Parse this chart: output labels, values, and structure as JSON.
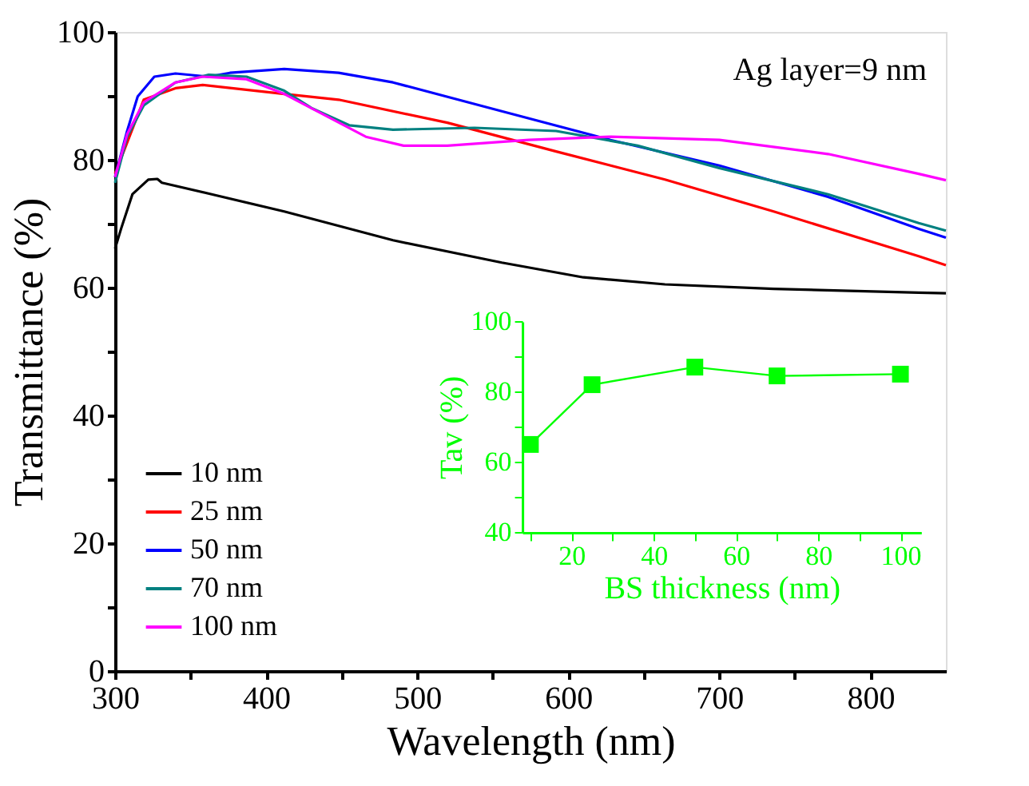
{
  "chart_data": [
    {
      "type": "line",
      "xlabel": "Wavelength (nm)",
      "ylabel": "Transmittance (%)",
      "xlim": [
        300,
        850
      ],
      "ylim": [
        0,
        100
      ],
      "xticks": [
        300,
        {
          "value": 350,
          "label": null
        },
        400,
        {
          "value": 450,
          "label": null
        },
        500,
        {
          "value": 550,
          "label": null
        },
        600,
        {
          "value": 650,
          "label": null
        },
        700,
        {
          "value": 750,
          "label": null
        },
        800
      ],
      "yticks": [
        0,
        {
          "value": 10,
          "label": null
        },
        20,
        {
          "value": 30,
          "label": null
        },
        40,
        {
          "value": 50,
          "label": null
        },
        60,
        {
          "value": 70,
          "label": null
        },
        80,
        {
          "value": 90,
          "label": null
        },
        100
      ],
      "legend": "bottom left",
      "grid": false,
      "line_style": "solid",
      "marker": "none",
      "annotations": [
        "Ag layer=9 nm"
      ],
      "series": [
        {
          "name": "10 nm",
          "color": "#000000",
          "x": [
            300,
            304,
            311.5,
            322,
            328,
            331,
            364,
            412,
            484,
            556,
            610,
            664,
            736,
            832,
            850
          ],
          "values": [
            66.1,
            69.2,
            74.6,
            76.9,
            77.0,
            76.4,
            74.6,
            71.9,
            67.4,
            63.9,
            61.6,
            60.5,
            59.8,
            59.2,
            59.1
          ]
        },
        {
          "name": "25 nm",
          "color": "#ff0000",
          "x": [
            300,
            319,
            340,
            358,
            412,
            448,
            520,
            592,
            664,
            736,
            832,
            850
          ],
          "values": [
            77.8,
            89.4,
            91.2,
            91.7,
            90.3,
            89.4,
            85.8,
            81.3,
            76.9,
            71.9,
            64.9,
            63.5
          ]
        },
        {
          "name": "50 nm",
          "color": "#0000ff",
          "x": [
            300,
            308,
            315,
            326,
            340,
            362,
            376,
            412,
            448,
            484,
            556,
            628,
            700,
            772,
            832,
            850
          ],
          "values": [
            77.3,
            84.5,
            89.9,
            93.0,
            93.5,
            93.0,
            93.6,
            94.2,
            93.6,
            92.1,
            87.6,
            83.1,
            79.1,
            74.2,
            69.2,
            67.8
          ]
        },
        {
          "name": "70 nm",
          "color": "#008080",
          "x": [
            300,
            308,
            319,
            340,
            362,
            387,
            412,
            430,
            455,
            484,
            538,
            592,
            646,
            700,
            772,
            832,
            850
          ],
          "values": [
            76.4,
            83.6,
            88.5,
            92.1,
            93.3,
            93.0,
            90.8,
            88.1,
            85.4,
            84.7,
            85.0,
            84.5,
            82.2,
            78.7,
            74.6,
            70.1,
            68.9
          ]
        },
        {
          "name": "100 nm",
          "color": "#ff00ff",
          "x": [
            300,
            308,
            319,
            340,
            358,
            387,
            412,
            441,
            466,
            491,
            520,
            574,
            628,
            700,
            772,
            832,
            850
          ],
          "values": [
            77.3,
            84.0,
            89.0,
            92.1,
            93.0,
            92.6,
            90.3,
            86.7,
            83.6,
            82.2,
            82.2,
            83.1,
            83.6,
            83.1,
            80.9,
            77.8,
            76.8
          ]
        }
      ]
    },
    {
      "type": "line",
      "xlabel": "BS thickness (nm)",
      "ylabel": "Tav (%)",
      "xlim": [
        8,
        105
      ],
      "ylim": [
        40,
        100
      ],
      "xticks": [
        {
          "value": 10,
          "label": null
        },
        20,
        {
          "value": 30,
          "label": null
        },
        40,
        {
          "value": 50,
          "label": null
        },
        60,
        {
          "value": 70,
          "label": null
        },
        80,
        {
          "value": 90,
          "label": null
        },
        100
      ],
      "yticks": [
        40,
        {
          "value": 50,
          "label": null
        },
        60,
        {
          "value": 70,
          "label": null
        },
        80,
        {
          "value": 90,
          "label": null
        },
        100
      ],
      "marker": "square",
      "grid": false,
      "legend": false,
      "series": [
        {
          "color": "#00ff00",
          "x": [
            10,
            25,
            50,
            70,
            100
          ],
          "values": [
            65,
            82,
            87,
            84.5,
            85
          ]
        }
      ]
    }
  ]
}
